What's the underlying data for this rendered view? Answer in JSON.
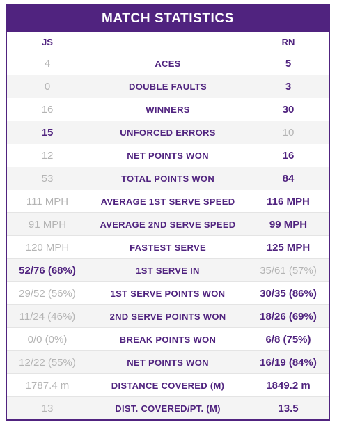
{
  "header": {
    "title": "MATCH STATISTICS"
  },
  "players": {
    "left": "JS",
    "right": "RN"
  },
  "colors": {
    "accent": "#50237f",
    "muted": "#b4b4b4",
    "row_alt": "#f4f4f4"
  },
  "stats": [
    {
      "label": "ACES",
      "left": "4",
      "right": "5",
      "leader": "right"
    },
    {
      "label": "DOUBLE FAULTS",
      "left": "0",
      "right": "3",
      "leader": "right"
    },
    {
      "label": "WINNERS",
      "left": "16",
      "right": "30",
      "leader": "right"
    },
    {
      "label": "UNFORCED ERRORS",
      "left": "15",
      "right": "10",
      "leader": "left"
    },
    {
      "label": "NET POINTS WON",
      "left": "12",
      "right": "16",
      "leader": "right"
    },
    {
      "label": "TOTAL POINTS WON",
      "left": "53",
      "right": "84",
      "leader": "right"
    },
    {
      "label": "AVERAGE 1ST SERVE SPEED",
      "left": "111 MPH",
      "right": "116 MPH",
      "leader": "right"
    },
    {
      "label": "AVERAGE 2ND SERVE SPEED",
      "left": "91 MPH",
      "right": "99 MPH",
      "leader": "right"
    },
    {
      "label": "FASTEST SERVE",
      "left": "120 MPH",
      "right": "125 MPH",
      "leader": "right"
    },
    {
      "label": "1ST SERVE IN",
      "left": "52/76 (68%)",
      "right": "35/61 (57%)",
      "leader": "left"
    },
    {
      "label": "1ST SERVE POINTS WON",
      "left": "29/52 (56%)",
      "right": "30/35 (86%)",
      "leader": "right"
    },
    {
      "label": "2ND SERVE POINTS WON",
      "left": "11/24 (46%)",
      "right": "18/26 (69%)",
      "leader": "right"
    },
    {
      "label": "BREAK POINTS WON",
      "left": "0/0 (0%)",
      "right": "6/8 (75%)",
      "leader": "right"
    },
    {
      "label": "NET POINTS WON",
      "left": "12/22 (55%)",
      "right": "16/19 (84%)",
      "leader": "right"
    },
    {
      "label": "DISTANCE COVERED (M)",
      "left": "1787.4 m",
      "right": "1849.2 m",
      "leader": "right"
    },
    {
      "label": "DIST. COVERED/PT. (M)",
      "left": "13",
      "right": "13.5",
      "leader": "right"
    }
  ]
}
